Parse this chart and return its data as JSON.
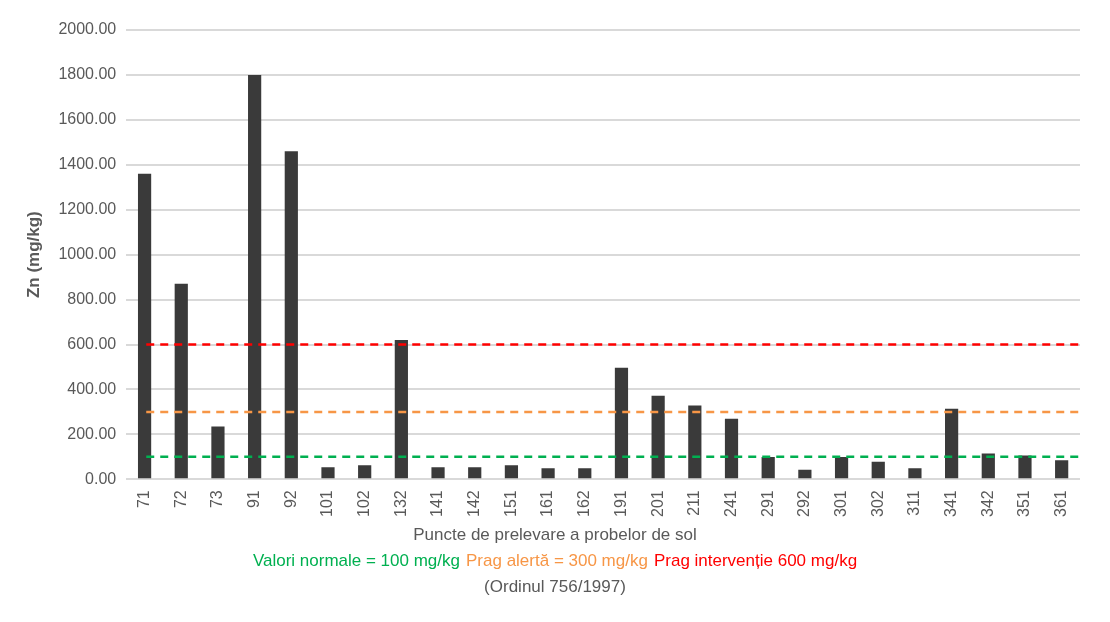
{
  "chart_data": {
    "type": "bar",
    "xlabel": "Puncte de prelevare a probelor de sol",
    "ylabel": "Zn (mg/kg)",
    "categories": [
      "71",
      "72",
      "73",
      "91",
      "92",
      "101",
      "102",
      "132",
      "141",
      "142",
      "151",
      "161",
      "162",
      "191",
      "201",
      "211",
      "241",
      "291",
      "292",
      "301",
      "302",
      "311",
      "341",
      "342",
      "351",
      "361"
    ],
    "values": [
      1360,
      870,
      235,
      1800,
      1460,
      54,
      63,
      620,
      54,
      54,
      63,
      49,
      49,
      497,
      372,
      328,
      270,
      99,
      42,
      99,
      78,
      49,
      314,
      115,
      106,
      85
    ],
    "color": "#3a3a3a",
    "ylim": [
      0,
      2000
    ],
    "yticks": [
      {
        "value": 0,
        "label": "0.00"
      },
      {
        "value": 200,
        "label": "200.00"
      },
      {
        "value": 400,
        "label": "400.00"
      },
      {
        "value": 600,
        "label": "600.00"
      },
      {
        "value": 800,
        "label": "800.00"
      },
      {
        "value": 1000,
        "label": "1000.00"
      },
      {
        "value": 1200,
        "label": "1200.00"
      },
      {
        "value": 1400,
        "label": "1400.00"
      },
      {
        "value": 1600,
        "label": "1600.00"
      },
      {
        "value": 1800,
        "label": "1800.00"
      },
      {
        "value": 2000,
        "label": "2000.00"
      }
    ],
    "grid": "y",
    "ref_lines": [
      {
        "axis": "y",
        "value": 100,
        "label": "Valori normale = 100 mg/kg",
        "color": "#00b050",
        "line_style": "dashed"
      },
      {
        "axis": "y",
        "value": 300,
        "label": "Prag alertă = 300 mg/kg",
        "color": "#f79646",
        "line_style": "dashed"
      },
      {
        "axis": "y",
        "value": 600,
        "label": "Prag intervenție 600 mg/kg",
        "color": "#ff0000",
        "line_style": "dashed"
      }
    ],
    "annotations": [
      "(Ordinul 756/1997)"
    ]
  }
}
